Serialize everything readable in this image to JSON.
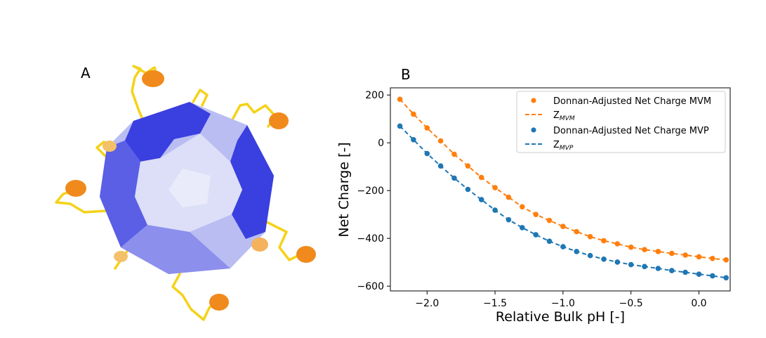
{
  "panel_a": {
    "label": "A"
  },
  "panel_b": {
    "label": "B"
  },
  "chart_data": {
    "type": "scatter",
    "xlabel": "Relative Bulk pH [-]",
    "ylabel": "Net Charge [-]",
    "xlim": [
      -2.27,
      0.23
    ],
    "ylim": [
      -620,
      230
    ],
    "xticks": [
      -2.0,
      -1.5,
      -1.0,
      -0.5,
      0.0
    ],
    "xtick_labels": [
      "−2.0",
      "−1.5",
      "−1.0",
      "−0.5",
      "0.0"
    ],
    "yticks": [
      200,
      0,
      -200,
      -400,
      -600
    ],
    "ytick_labels": [
      "200",
      "0",
      "−200",
      "−400",
      "−600"
    ],
    "legend_position": "top-right",
    "grid": false,
    "series": [
      {
        "name": "Donnan-Adjusted Net Charge MVM",
        "kind": "points",
        "color": "#ff7f0e",
        "x": [
          -2.2,
          -2.1,
          -2.0,
          -1.9,
          -1.8,
          -1.7,
          -1.6,
          -1.5,
          -1.4,
          -1.3,
          -1.2,
          -1.1,
          -1.0,
          -0.9,
          -0.8,
          -0.7,
          -0.6,
          -0.5,
          -0.4,
          -0.3,
          -0.2,
          -0.1,
          0.0,
          0.1,
          0.2
        ],
        "y": [
          182,
          120,
          62,
          8,
          -48,
          -97,
          -145,
          -188,
          -228,
          -268,
          -300,
          -325,
          -350,
          -372,
          -393,
          -410,
          -423,
          -437,
          -447,
          -455,
          -463,
          -470,
          -477,
          -484,
          -490
        ]
      },
      {
        "name_main": "Z",
        "name_sub": "MVM",
        "kind": "dashed-line",
        "color": "#ff7f0e",
        "x": [
          -2.2,
          -2.1,
          -2.0,
          -1.9,
          -1.8,
          -1.7,
          -1.6,
          -1.5,
          -1.4,
          -1.3,
          -1.2,
          -1.1,
          -1.0,
          -0.9,
          -0.8,
          -0.7,
          -0.6,
          -0.5,
          -0.4,
          -0.3,
          -0.2,
          -0.1,
          0.0,
          0.1,
          0.2
        ],
        "y": [
          182,
          120,
          62,
          8,
          -48,
          -97,
          -145,
          -188,
          -228,
          -268,
          -300,
          -325,
          -350,
          -372,
          -393,
          -410,
          -423,
          -437,
          -447,
          -455,
          -463,
          -470,
          -477,
          -484,
          -490
        ]
      },
      {
        "name": "Donnan-Adjusted Net Charge MVP",
        "kind": "points",
        "color": "#1f77b4",
        "x": [
          -2.2,
          -2.1,
          -2.0,
          -1.9,
          -1.8,
          -1.7,
          -1.6,
          -1.5,
          -1.4,
          -1.3,
          -1.2,
          -1.1,
          -1.0,
          -0.9,
          -0.8,
          -0.7,
          -0.6,
          -0.5,
          -0.4,
          -0.3,
          -0.2,
          -0.1,
          0.0,
          0.1,
          0.2
        ],
        "y": [
          70,
          13,
          -45,
          -97,
          -148,
          -195,
          -238,
          -282,
          -322,
          -355,
          -385,
          -412,
          -435,
          -455,
          -472,
          -487,
          -499,
          -510,
          -518,
          -526,
          -535,
          -542,
          -550,
          -557,
          -565
        ]
      },
      {
        "name_main": "Z",
        "name_sub": "MVP",
        "kind": "dashed-line",
        "color": "#1f77b4",
        "x": [
          -2.2,
          -2.1,
          -2.0,
          -1.9,
          -1.8,
          -1.7,
          -1.6,
          -1.5,
          -1.4,
          -1.3,
          -1.2,
          -1.1,
          -1.0,
          -0.9,
          -0.8,
          -0.7,
          -0.6,
          -0.5,
          -0.4,
          -0.3,
          -0.2,
          -0.1,
          0.0,
          0.1,
          0.2
        ],
        "y": [
          70,
          13,
          -45,
          -97,
          -148,
          -195,
          -238,
          -282,
          -322,
          -355,
          -385,
          -412,
          -435,
          -455,
          -472,
          -487,
          -499,
          -510,
          -518,
          -526,
          -535,
          -542,
          -550,
          -557,
          -565
        ]
      }
    ]
  },
  "virus_colors": {
    "dark_blue": "#3a3fe0",
    "mid_blue": "#7d80ea",
    "light_blue": "#b9bdf2",
    "pale": "#dcdff7",
    "tether_yellow": "#f5d21a",
    "protein_orange": "#f08a1c"
  }
}
